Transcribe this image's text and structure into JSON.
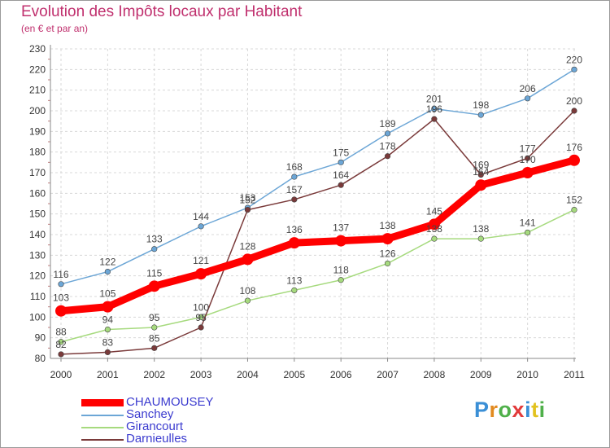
{
  "chart_data": {
    "type": "line",
    "title": "Evolution des Impôts locaux par Habitant",
    "subtitle": "(en € et par an)",
    "xlabel": "",
    "ylabel": "",
    "ylim": [
      80,
      230
    ],
    "yticks": [
      80,
      90,
      100,
      110,
      120,
      130,
      140,
      150,
      160,
      170,
      180,
      190,
      200,
      210,
      220,
      230
    ],
    "grid": true,
    "legend_position": "bottom-left",
    "categories": [
      "2000",
      "2001",
      "2002",
      "2003",
      "2004",
      "2005",
      "2006",
      "2007",
      "2008",
      "2009",
      "2010",
      "2011"
    ],
    "series": [
      {
        "name": "CHAUMOUSEY",
        "color": "#ff0000",
        "values": [
          103,
          105,
          115,
          121,
          128,
          136,
          137,
          138,
          145,
          164,
          170,
          176
        ]
      },
      {
        "name": "Sanchey",
        "color": "#6ca6d6",
        "values": [
          116,
          122,
          133,
          144,
          153,
          168,
          175,
          189,
          201,
          198,
          206,
          220
        ]
      },
      {
        "name": "Girancourt",
        "color": "#a6da7e",
        "values": [
          88,
          94,
          95,
          100,
          108,
          113,
          118,
          126,
          138,
          138,
          141,
          152
        ]
      },
      {
        "name": "Darnieulles",
        "color": "#7a3a3a",
        "values": [
          82,
          83,
          85,
          95,
          152,
          157,
          164,
          178,
          196,
          169,
          177,
          200
        ]
      }
    ]
  },
  "logo": {
    "letters": [
      "P",
      "r",
      "o",
      "x",
      "i",
      "t",
      "i"
    ]
  }
}
